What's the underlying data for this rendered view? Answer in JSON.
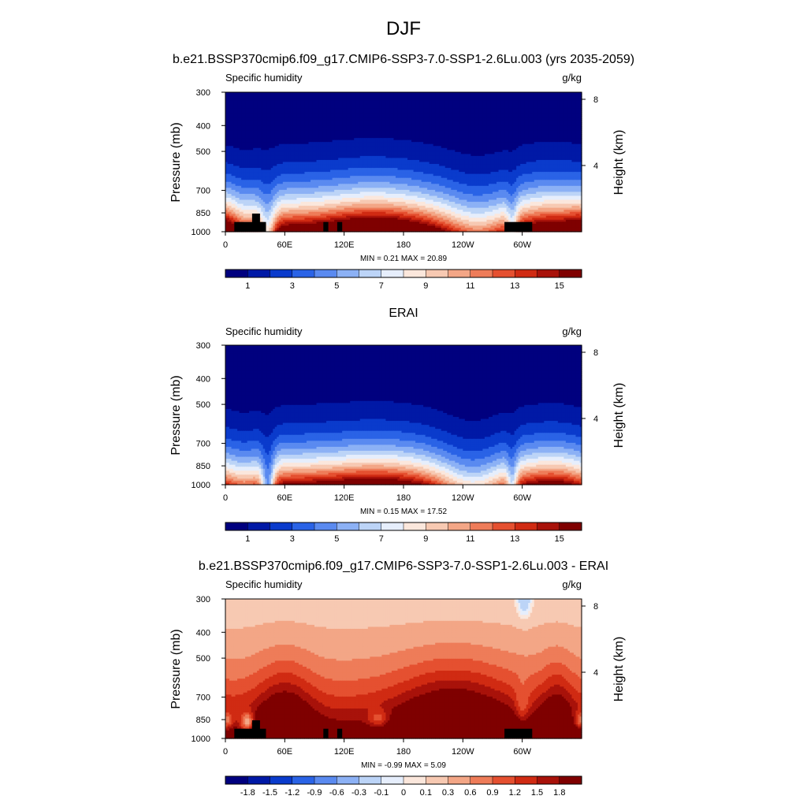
{
  "figure_title": "DJF",
  "colors": {
    "main_scale": [
      "#00007f",
      "#0019a6",
      "#0a3bcc",
      "#2a63e6",
      "#5a8af0",
      "#8cb1f5",
      "#bcd4f7",
      "#e6eefc",
      "#fbe7dc",
      "#f7c9b2",
      "#f3a686",
      "#ee7c59",
      "#e55030",
      "#d02b13",
      "#a8120a",
      "#7f0000"
    ],
    "diff_scale": [
      "#00007f",
      "#0019a6",
      "#0a3bcc",
      "#2a63e6",
      "#5a8af0",
      "#8cb1f5",
      "#bcd4f7",
      "#e6eefc",
      "#fbe7dc",
      "#f7c9b2",
      "#f3a686",
      "#ee7c59",
      "#e55030",
      "#d02b13",
      "#a8120a",
      "#7f0000"
    ],
    "terrain": "#000000"
  },
  "chart_data": [
    {
      "type": "heatmap",
      "title": "b.e21.BSSP370cmip6.f09_g17.CMIP6-SSP3-7.0-SSP1-2.6Lu.003 (yrs 2035-2059)",
      "left_label": "Specific humidity",
      "right_label": "g/kg",
      "ylabel": "Pressure (mb)",
      "y2label": "Height (km)",
      "x_ticks": [
        "0",
        "60E",
        "120E",
        "180",
        "120W",
        "60W"
      ],
      "x_tick_values": [
        0,
        60,
        120,
        180,
        240,
        300
      ],
      "xlim": [
        0,
        360
      ],
      "y_ticks": [
        "300",
        "400",
        "500",
        "700",
        "850",
        "1000"
      ],
      "y_tick_values": [
        300,
        400,
        500,
        700,
        850,
        1000
      ],
      "ylim": [
        1000,
        300
      ],
      "y2_ticks": [
        "8",
        "4"
      ],
      "y2_tick_values": [
        8,
        4
      ],
      "stats": "MIN =   0.21  MAX =  20.89",
      "min": 0.21,
      "max": 20.89,
      "colorbar_labels": [
        "1",
        "3",
        "5",
        "7",
        "9",
        "11",
        "13",
        "15"
      ],
      "field": "main",
      "terrain": true
    },
    {
      "type": "heatmap",
      "title": "ERAI",
      "left_label": "Specific humidity",
      "right_label": "g/kg",
      "ylabel": "Pressure (mb)",
      "y2label": "Height (km)",
      "x_ticks": [
        "0",
        "60E",
        "120E",
        "180",
        "120W",
        "60W"
      ],
      "x_tick_values": [
        0,
        60,
        120,
        180,
        240,
        300
      ],
      "xlim": [
        0,
        360
      ],
      "y_ticks": [
        "300",
        "400",
        "500",
        "700",
        "850",
        "1000"
      ],
      "y_tick_values": [
        300,
        400,
        500,
        700,
        850,
        1000
      ],
      "ylim": [
        1000,
        300
      ],
      "y2_ticks": [
        "8",
        "4"
      ],
      "y2_tick_values": [
        8,
        4
      ],
      "stats": "MIN =   0.15  MAX =  17.52",
      "min": 0.15,
      "max": 17.52,
      "colorbar_labels": [
        "1",
        "3",
        "5",
        "7",
        "9",
        "11",
        "13",
        "15"
      ],
      "field": "obs",
      "terrain": false
    },
    {
      "type": "heatmap",
      "title": "b.e21.BSSP370cmip6.f09_g17.CMIP6-SSP3-7.0-SSP1-2.6Lu.003 - ERAI",
      "left_label": "Specific humidity",
      "right_label": "g/kg",
      "ylabel": "Pressure (mb)",
      "y2label": "Height (km)",
      "x_ticks": [
        "0",
        "60E",
        "120E",
        "180",
        "120W",
        "60W"
      ],
      "x_tick_values": [
        0,
        60,
        120,
        180,
        240,
        300
      ],
      "xlim": [
        0,
        360
      ],
      "y_ticks": [
        "300",
        "400",
        "500",
        "700",
        "850",
        "1000"
      ],
      "y_tick_values": [
        300,
        400,
        500,
        700,
        850,
        1000
      ],
      "ylim": [
        1000,
        300
      ],
      "y2_ticks": [
        "8",
        "4"
      ],
      "y2_tick_values": [
        8,
        4
      ],
      "stats": "MIN =  -0.99  MAX =   5.09",
      "min": -0.99,
      "max": 5.09,
      "colorbar_labels": [
        "-1.8",
        "-1.5",
        "-1.2",
        "-0.9",
        "-0.6",
        "-0.3",
        "-0.1",
        "0",
        "0.1",
        "0.3",
        "0.6",
        "0.9",
        "1.2",
        "1.5",
        "1.8"
      ],
      "field": "diff",
      "terrain": true
    }
  ]
}
